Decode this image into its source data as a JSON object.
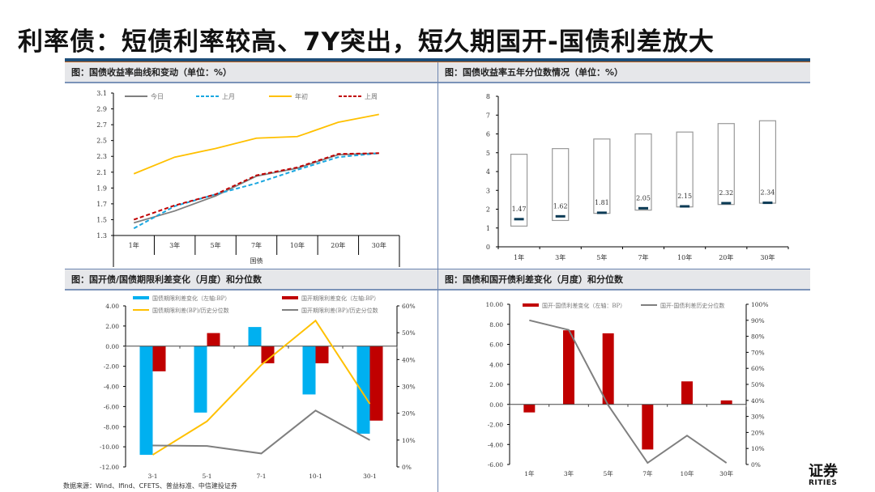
{
  "header": {
    "title": "利率债：短债利率较高、7Y突出，短久期国开-国债利差放大"
  },
  "panels": {
    "p1": {
      "title": "图：国债收益率曲线和变动（单位：%）"
    },
    "p2": {
      "title": "图：国债收益率五年分位数情况（单位：%）"
    },
    "p3": {
      "title": "图：国开债/国债期限利差变化（月度）和分位数"
    },
    "p4": {
      "title": "图：国债和国开债利差变化（月度）和分位数"
    }
  },
  "footer": {
    "source": "数据来源：Wind、Ifind、CFETS、普益标准、中信建投证券",
    "logo_cn": "证券",
    "logo_en": "RITIES"
  },
  "chart_data": [
    {
      "type": "line",
      "title": "国债收益率曲线和变动（单位：%）",
      "categories": [
        "1年",
        "3年",
        "5年",
        "7年",
        "10年",
        "20年",
        "30年"
      ],
      "xlabel": "国债",
      "ylim": [
        1.3,
        3.1
      ],
      "yticks": [
        "3.1",
        "2.9",
        "2.7",
        "2.5",
        "2.3",
        "2.1",
        "1.9",
        "1.7",
        "1.5",
        "1.3"
      ],
      "series": [
        {
          "name": "今日",
          "color": "#7f7f7f",
          "dash": false,
          "values": [
            1.46,
            1.61,
            1.8,
            2.05,
            2.15,
            2.32,
            2.34
          ]
        },
        {
          "name": "上月",
          "color": "#1aa7e0",
          "dash": true,
          "values": [
            1.39,
            1.67,
            1.82,
            1.96,
            2.13,
            2.29,
            2.34
          ]
        },
        {
          "name": "年初",
          "color": "#ffc000",
          "dash": false,
          "values": [
            2.08,
            2.29,
            2.4,
            2.53,
            2.55,
            2.73,
            2.83
          ]
        },
        {
          "name": "上周",
          "color": "#c00000",
          "dash": true,
          "values": [
            1.5,
            1.68,
            1.82,
            2.06,
            2.16,
            2.33,
            2.34
          ]
        }
      ]
    },
    {
      "type": "bar",
      "title": "国债收益率五年分位数情况（单位：%）",
      "categories": [
        "1年",
        "3年",
        "5年",
        "7年",
        "10年",
        "20年",
        "30年"
      ],
      "ylim": [
        0,
        8
      ],
      "yticks": [
        "8",
        "7",
        "6",
        "5",
        "4",
        "3",
        "2",
        "1",
        "0"
      ],
      "range_low": [
        1.1,
        1.4,
        1.78,
        1.95,
        2.12,
        2.25,
        2.32
      ],
      "range_high": [
        4.92,
        5.22,
        5.73,
        6.0,
        6.1,
        6.55,
        6.7
      ],
      "current": [
        1.47,
        1.62,
        1.81,
        2.05,
        2.15,
        2.32,
        2.34
      ],
      "labels": [
        "1.47",
        "1.62",
        "1.81",
        "2.05",
        "2.15",
        "2.32",
        "2.34"
      ]
    },
    {
      "type": "bar",
      "title": "国开债/国债期限利差变化（月度）和分位数",
      "categories": [
        "3-1",
        "5-1",
        "7-1",
        "10-1",
        "30-1"
      ],
      "ylim": [
        -12,
        4
      ],
      "y2lim": [
        0,
        0.6
      ],
      "yticks": [
        "4.00",
        "2.00",
        "0.00",
        "-2.00",
        "-4.00",
        "-6.00",
        "-8.00",
        "-10.00",
        "-12.00"
      ],
      "y2ticks": [
        "60%",
        "50%",
        "40%",
        "30%",
        "20%",
        "10%",
        "0%"
      ],
      "series": [
        {
          "name": "国债期限利差变化（左轴:BP）",
          "type": "bar",
          "color": "#00b0f0",
          "values": [
            -10.8,
            -6.6,
            1.9,
            -4.8,
            -8.7
          ]
        },
        {
          "name": "国开期限利差变化（左轴:BP）",
          "type": "bar",
          "color": "#c00000",
          "values": [
            -2.5,
            1.3,
            -1.7,
            -1.7,
            -7.4
          ]
        },
        {
          "name": "国债期限利差(BP)/历史分位数",
          "type": "line",
          "axis": "right",
          "color": "#ffc000",
          "values": [
            0.045,
            0.17,
            0.38,
            0.545,
            0.235
          ]
        },
        {
          "name": "国开期限利差(BP)/历史分位数",
          "type": "line",
          "axis": "right",
          "color": "#7f7f7f",
          "values": [
            0.08,
            0.078,
            0.05,
            0.21,
            0.1
          ]
        }
      ]
    },
    {
      "type": "bar",
      "title": "国债和国开债利差变化（月度）和分位数",
      "categories": [
        "1年",
        "3年",
        "5年",
        "7年",
        "10年",
        "30年"
      ],
      "ylim": [
        -6,
        10
      ],
      "y2lim": [
        0,
        1
      ],
      "yticks": [
        "10.00",
        "8.00",
        "6.00",
        "4.00",
        "2.00",
        "0.00",
        "-2.00",
        "-4.00",
        "-6.00"
      ],
      "y2ticks": [
        "100%",
        "90%",
        "80%",
        "70%",
        "60%",
        "50%",
        "40%",
        "30%",
        "20%",
        "10%",
        "0%"
      ],
      "series": [
        {
          "name": "国开-国债利差变化（左轴：BP）",
          "type": "bar",
          "color": "#c00000",
          "values": [
            -0.8,
            7.4,
            7.1,
            -4.5,
            2.3,
            0.4
          ]
        },
        {
          "name": "国开-国债利差历史分位数",
          "type": "line",
          "axis": "right",
          "color": "#7f7f7f",
          "values": [
            0.9,
            0.84,
            0.37,
            0.01,
            0.18,
            0.01
          ]
        }
      ]
    }
  ]
}
